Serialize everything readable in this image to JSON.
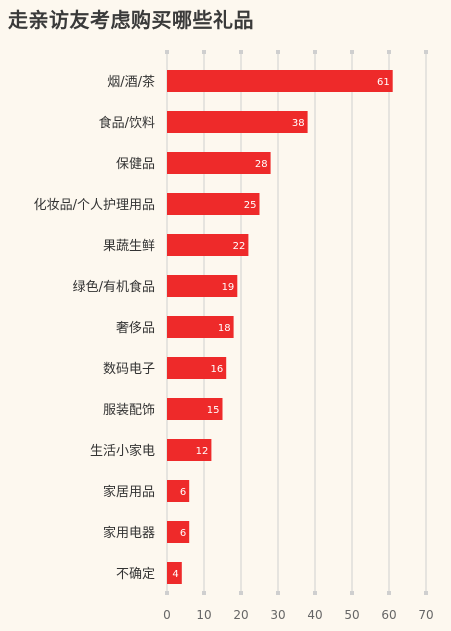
{
  "colors": {
    "background": "#fdf8ef",
    "bar": "#ee2a2a",
    "grid": "#cfcfcf"
  },
  "chart_data": {
    "type": "bar",
    "orientation": "horizontal",
    "title": "走亲访友考虑购买哪些礼品",
    "categories": [
      "烟/酒/茶",
      "食品/饮料",
      "保健品",
      "化妆品/个人护理用品",
      "果蔬生鲜",
      "绿色/有机食品",
      "奢侈品",
      "数码电子",
      "服装配饰",
      "生活小家电",
      "家居用品",
      "家用电器",
      "不确定"
    ],
    "values": [
      61,
      38,
      28,
      25,
      22,
      19,
      18,
      16,
      15,
      12,
      6,
      6,
      4
    ],
    "xlim": [
      0,
      70
    ],
    "xticks": [
      "0",
      "10",
      "20",
      "30",
      "40",
      "50",
      "60",
      "70"
    ],
    "grid": true,
    "xlabel": "",
    "ylabel": ""
  }
}
